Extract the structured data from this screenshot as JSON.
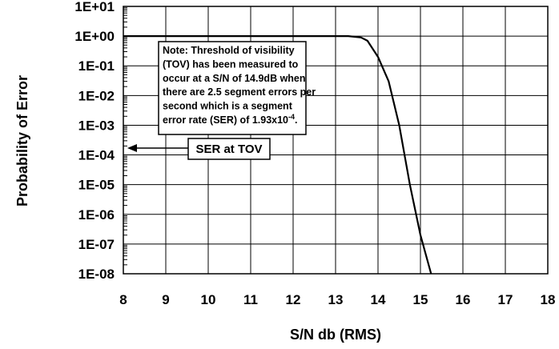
{
  "chart_data": {
    "type": "line",
    "xlabel": "S/N db (RMS)",
    "ylabel": "Probability of Error",
    "xlim": [
      8,
      18
    ],
    "ylim_exponent": [
      -8,
      1
    ],
    "yscale": "log",
    "x_ticks": [
      "8",
      "9",
      "10",
      "11",
      "12",
      "13",
      "14",
      "15",
      "16",
      "17",
      "18"
    ],
    "y_ticks": [
      "1E+01",
      "1E+00",
      "1E-01",
      "1E-02",
      "1E-03",
      "1E-04",
      "1E-05",
      "1E-06",
      "1E-07",
      "1E-08"
    ],
    "grid": true,
    "series": [
      {
        "x": [
          8.0,
          13.0,
          13.3,
          13.6,
          13.75,
          14.0,
          14.25,
          14.5,
          14.75,
          15.0,
          15.25
        ],
        "y": [
          1.0,
          1.0,
          1.0,
          0.9,
          0.7,
          0.2,
          0.03,
          0.001,
          1e-05,
          2e-07,
          1e-08
        ],
        "color": "#000000"
      }
    ],
    "annotations": {
      "note": {
        "lines": [
          "Note: Threshold of visibility",
          "(TOV) has been measured to",
          "occur at a S/N of 14.9dB when",
          "there are 2.5 segment errors per",
          "second which is a segment",
          "error rate (SER) of 1.93x10"
        ],
        "superscript": "-4",
        "tail": "."
      },
      "ser_label": "SER at TOV"
    }
  }
}
